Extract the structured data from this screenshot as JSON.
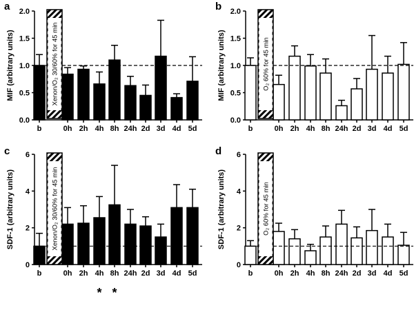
{
  "chart_data": [
    {
      "type": "bar",
      "panel_label": "a",
      "ylabel": "MIF (arbitrary units)",
      "ylim": [
        0,
        2.0
      ],
      "yticks": [
        "0.0",
        "0.5",
        "1.0",
        "1.5",
        "2.0"
      ],
      "reference_line": 1.0,
      "bar_fill": "#000000",
      "categories": [
        "b",
        "0h",
        "2h",
        "4h",
        "8h",
        "24h",
        "2d",
        "3d",
        "4d",
        "5d"
      ],
      "values": [
        1.0,
        0.84,
        0.93,
        0.66,
        1.1,
        0.63,
        0.45,
        1.17,
        0.41,
        0.71
      ],
      "errors": [
        0.2,
        0.12,
        0.06,
        0.22,
        0.27,
        0.17,
        0.19,
        0.66,
        0.07,
        0.45
      ],
      "treatment_label": "Xenon/O₂ 30/60% for 45 min",
      "annotations": []
    },
    {
      "type": "bar",
      "panel_label": "b",
      "ylabel": "MIF (arbitrary units)",
      "ylim": [
        0,
        2.0
      ],
      "yticks": [
        "0.0",
        "0.5",
        "1.0",
        "1.5",
        "2.0"
      ],
      "reference_line": 1.0,
      "bar_fill": "#ffffff",
      "categories": [
        "b",
        "0h",
        "2h",
        "4h",
        "8h",
        "24h",
        "2d",
        "3d",
        "4d",
        "5d"
      ],
      "values": [
        1.0,
        0.65,
        1.17,
        0.99,
        0.86,
        0.26,
        0.57,
        0.93,
        0.86,
        1.02
      ],
      "errors": [
        0.14,
        0.17,
        0.19,
        0.21,
        0.26,
        0.1,
        0.19,
        0.62,
        0.31,
        0.4
      ],
      "treatment_label": "O₂ 60% for 45 min",
      "annotations": []
    },
    {
      "type": "bar",
      "panel_label": "c",
      "ylabel": "SDF-1 (arbitrary units)",
      "ylim": [
        0,
        6
      ],
      "yticks": [
        "0",
        "2",
        "4",
        "6"
      ],
      "reference_line": 1.0,
      "bar_fill": "#000000",
      "categories": [
        "b",
        "0h",
        "2h",
        "4h",
        "8h",
        "24h",
        "2d",
        "3d",
        "4d",
        "5d"
      ],
      "values": [
        1.0,
        2.2,
        2.25,
        2.55,
        3.25,
        2.2,
        2.1,
        1.5,
        3.1,
        3.1
      ],
      "errors": [
        0.7,
        0.9,
        0.95,
        1.15,
        2.15,
        0.8,
        0.5,
        0.7,
        1.25,
        1.0
      ],
      "treatment_label": "Xenon/O₂ 30/60% for 45 min",
      "annotations": [
        {
          "category": "4h",
          "text": "*"
        },
        {
          "category": "8h",
          "text": "*"
        }
      ]
    },
    {
      "type": "bar",
      "panel_label": "d",
      "ylabel": "SDF-1 (arbitrary units)",
      "ylim": [
        0,
        6
      ],
      "yticks": [
        "0",
        "2",
        "4",
        "6"
      ],
      "reference_line": 1.0,
      "bar_fill": "#ffffff",
      "categories": [
        "b",
        "0h",
        "2h",
        "4h",
        "8h",
        "24h",
        "2d",
        "3d",
        "4d",
        "5d"
      ],
      "values": [
        1.0,
        1.8,
        1.4,
        0.75,
        1.5,
        2.2,
        1.45,
        1.85,
        1.5,
        1.05
      ],
      "errors": [
        0.3,
        0.45,
        0.5,
        0.35,
        0.6,
        0.75,
        0.6,
        1.15,
        0.7,
        0.7
      ],
      "treatment_label": "O₂ 60% for 45 min",
      "annotations": []
    }
  ]
}
